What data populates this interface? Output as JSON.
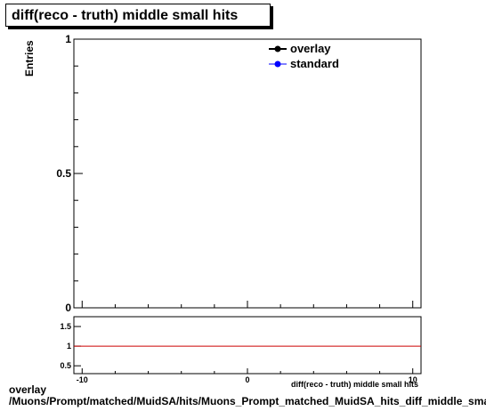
{
  "chart_data": {
    "type": "line",
    "title": "diff(reco - truth) middle small hits",
    "ylabel": "Entries",
    "xlabel": "diff(reco - truth) middle small hits",
    "xlim": [
      -10.5,
      10.5
    ],
    "ylim": [
      0,
      1
    ],
    "main_yticks": [
      "0",
      "0.5",
      "1"
    ],
    "ratio_ylim": [
      0.3,
      1.75
    ],
    "ratio_yticks": [
      "0.5",
      "1",
      "1.5"
    ],
    "ratio_reference": 1,
    "x_ticks": [
      "-10",
      "0",
      "10"
    ],
    "legend": [
      {
        "name": "overlay",
        "color": "#000000"
      },
      {
        "name": "standard",
        "color": "#0000ff"
      }
    ],
    "legend_position": "top-right",
    "ratio_line_color": "#cc0000",
    "series": [
      {
        "name": "overlay",
        "values": []
      },
      {
        "name": "standard",
        "values": []
      }
    ]
  },
  "footer": {
    "line1": "overlay",
    "line2": "/Muons/Prompt/matched/MuidSA/hits/Muons_Prompt_matched_MuidSA_hits_diff_middle_small_hits"
  }
}
